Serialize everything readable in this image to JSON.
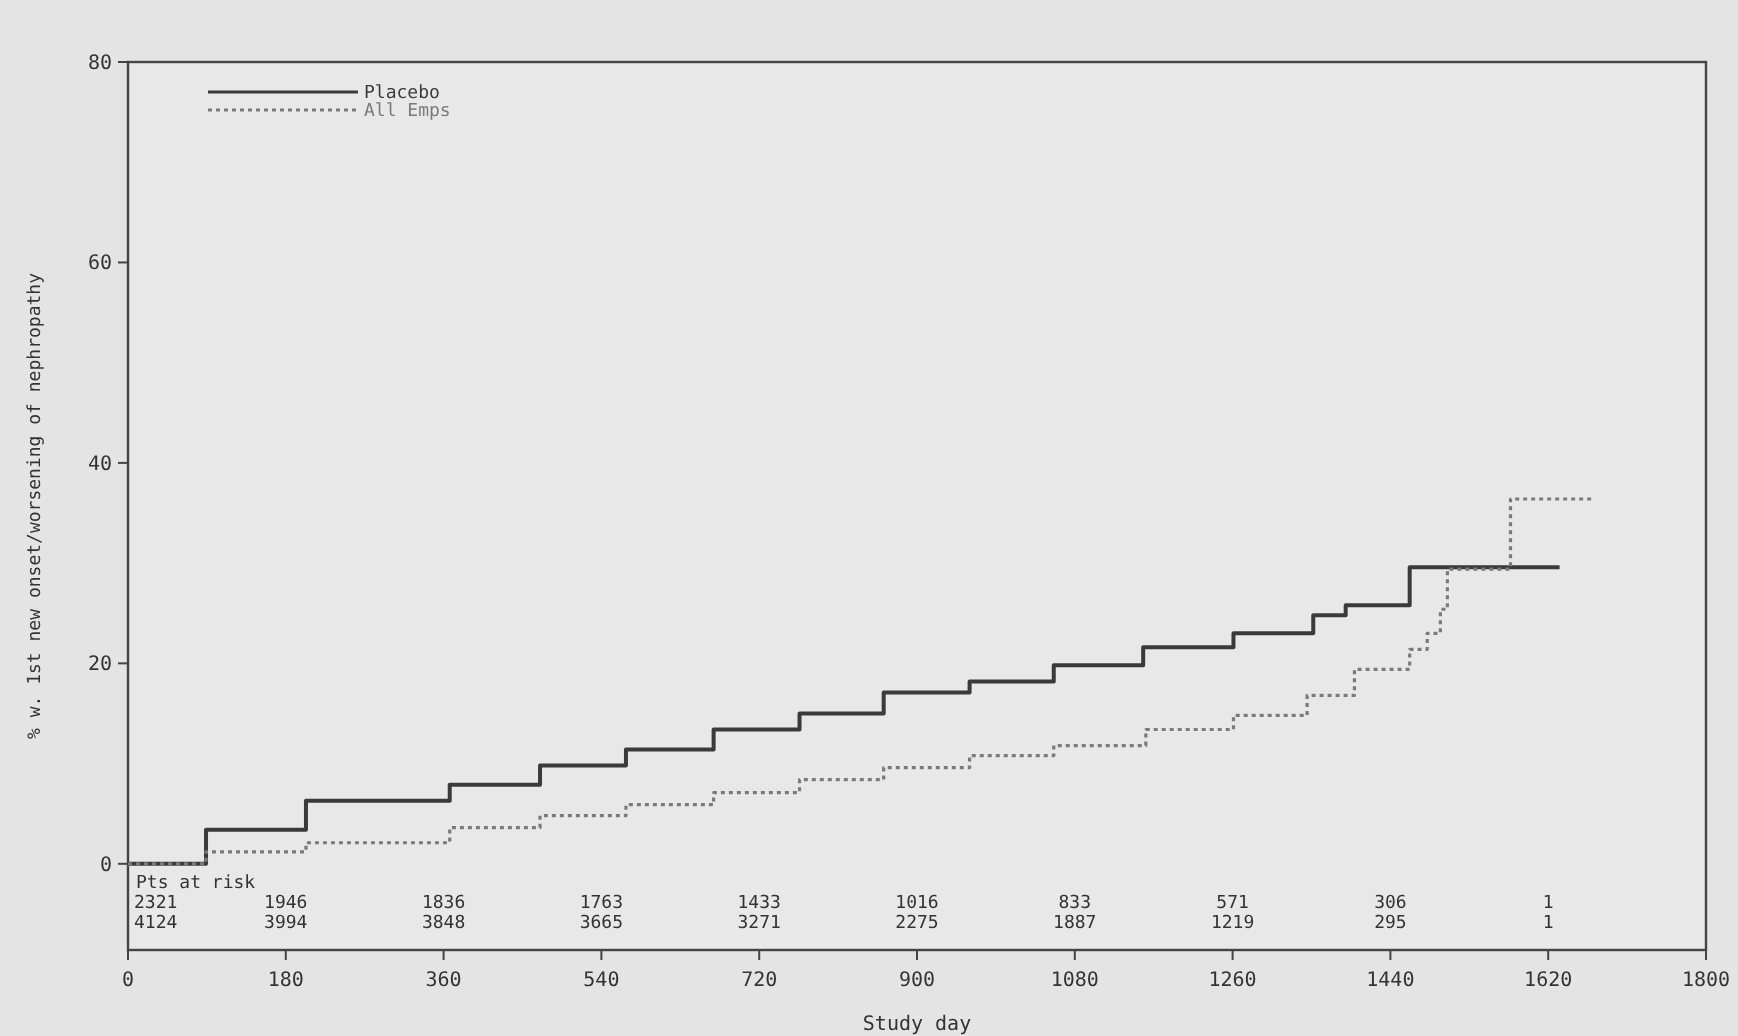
{
  "chart_data": {
    "type": "step",
    "xlabel": "Study day",
    "ylabel": "% w. 1st new onset/worsening of nephropathy",
    "xlim": [
      0,
      1800
    ],
    "xticks": [
      0,
      180,
      360,
      540,
      720,
      900,
      1080,
      1260,
      1440,
      1620,
      1800
    ],
    "ylim": [
      -8.6,
      80
    ],
    "yticks": [
      0,
      20,
      40,
      60,
      80
    ],
    "legend": "top left",
    "grid": false,
    "series": [
      {
        "name": "Placebo",
        "color": "#3a3a3a",
        "line_style": "solid",
        "x": [
          0,
          89,
          203,
          367,
          470,
          568,
          668,
          766,
          862,
          960,
          1056,
          1158,
          1261,
          1352,
          1389,
          1462,
          1633
        ],
        "values": [
          0,
          3.4,
          6.3,
          7.9,
          9.8,
          11.4,
          13.4,
          15,
          17.1,
          18.2,
          19.8,
          21.6,
          23,
          24.8,
          25.8,
          29.6,
          29.6
        ]
      },
      {
        "name": "All Emps",
        "color": "#7a7a7a",
        "line_style": "dotted",
        "x": [
          0,
          89,
          203,
          367,
          470,
          568,
          668,
          766,
          862,
          960,
          1056,
          1161,
          1261,
          1345,
          1399,
          1462,
          1482,
          1497,
          1505,
          1577,
          1673
        ],
        "values": [
          0,
          1.2,
          2.1,
          3.6,
          4.8,
          5.9,
          7.1,
          8.4,
          9.6,
          10.8,
          11.8,
          13.4,
          14.8,
          16.8,
          19.4,
          21.4,
          23,
          25.4,
          29.4,
          36.4,
          36.4
        ]
      }
    ],
    "annotations": [
      "Pts at risk",
      "2321",
      "1946",
      "1836",
      "1763",
      "1433",
      "1016",
      "833",
      "571",
      "306",
      "1",
      "4124",
      "3994",
      "3848",
      "3665",
      "3271",
      "2275",
      "1887",
      "1219",
      "295",
      "1"
    ]
  }
}
